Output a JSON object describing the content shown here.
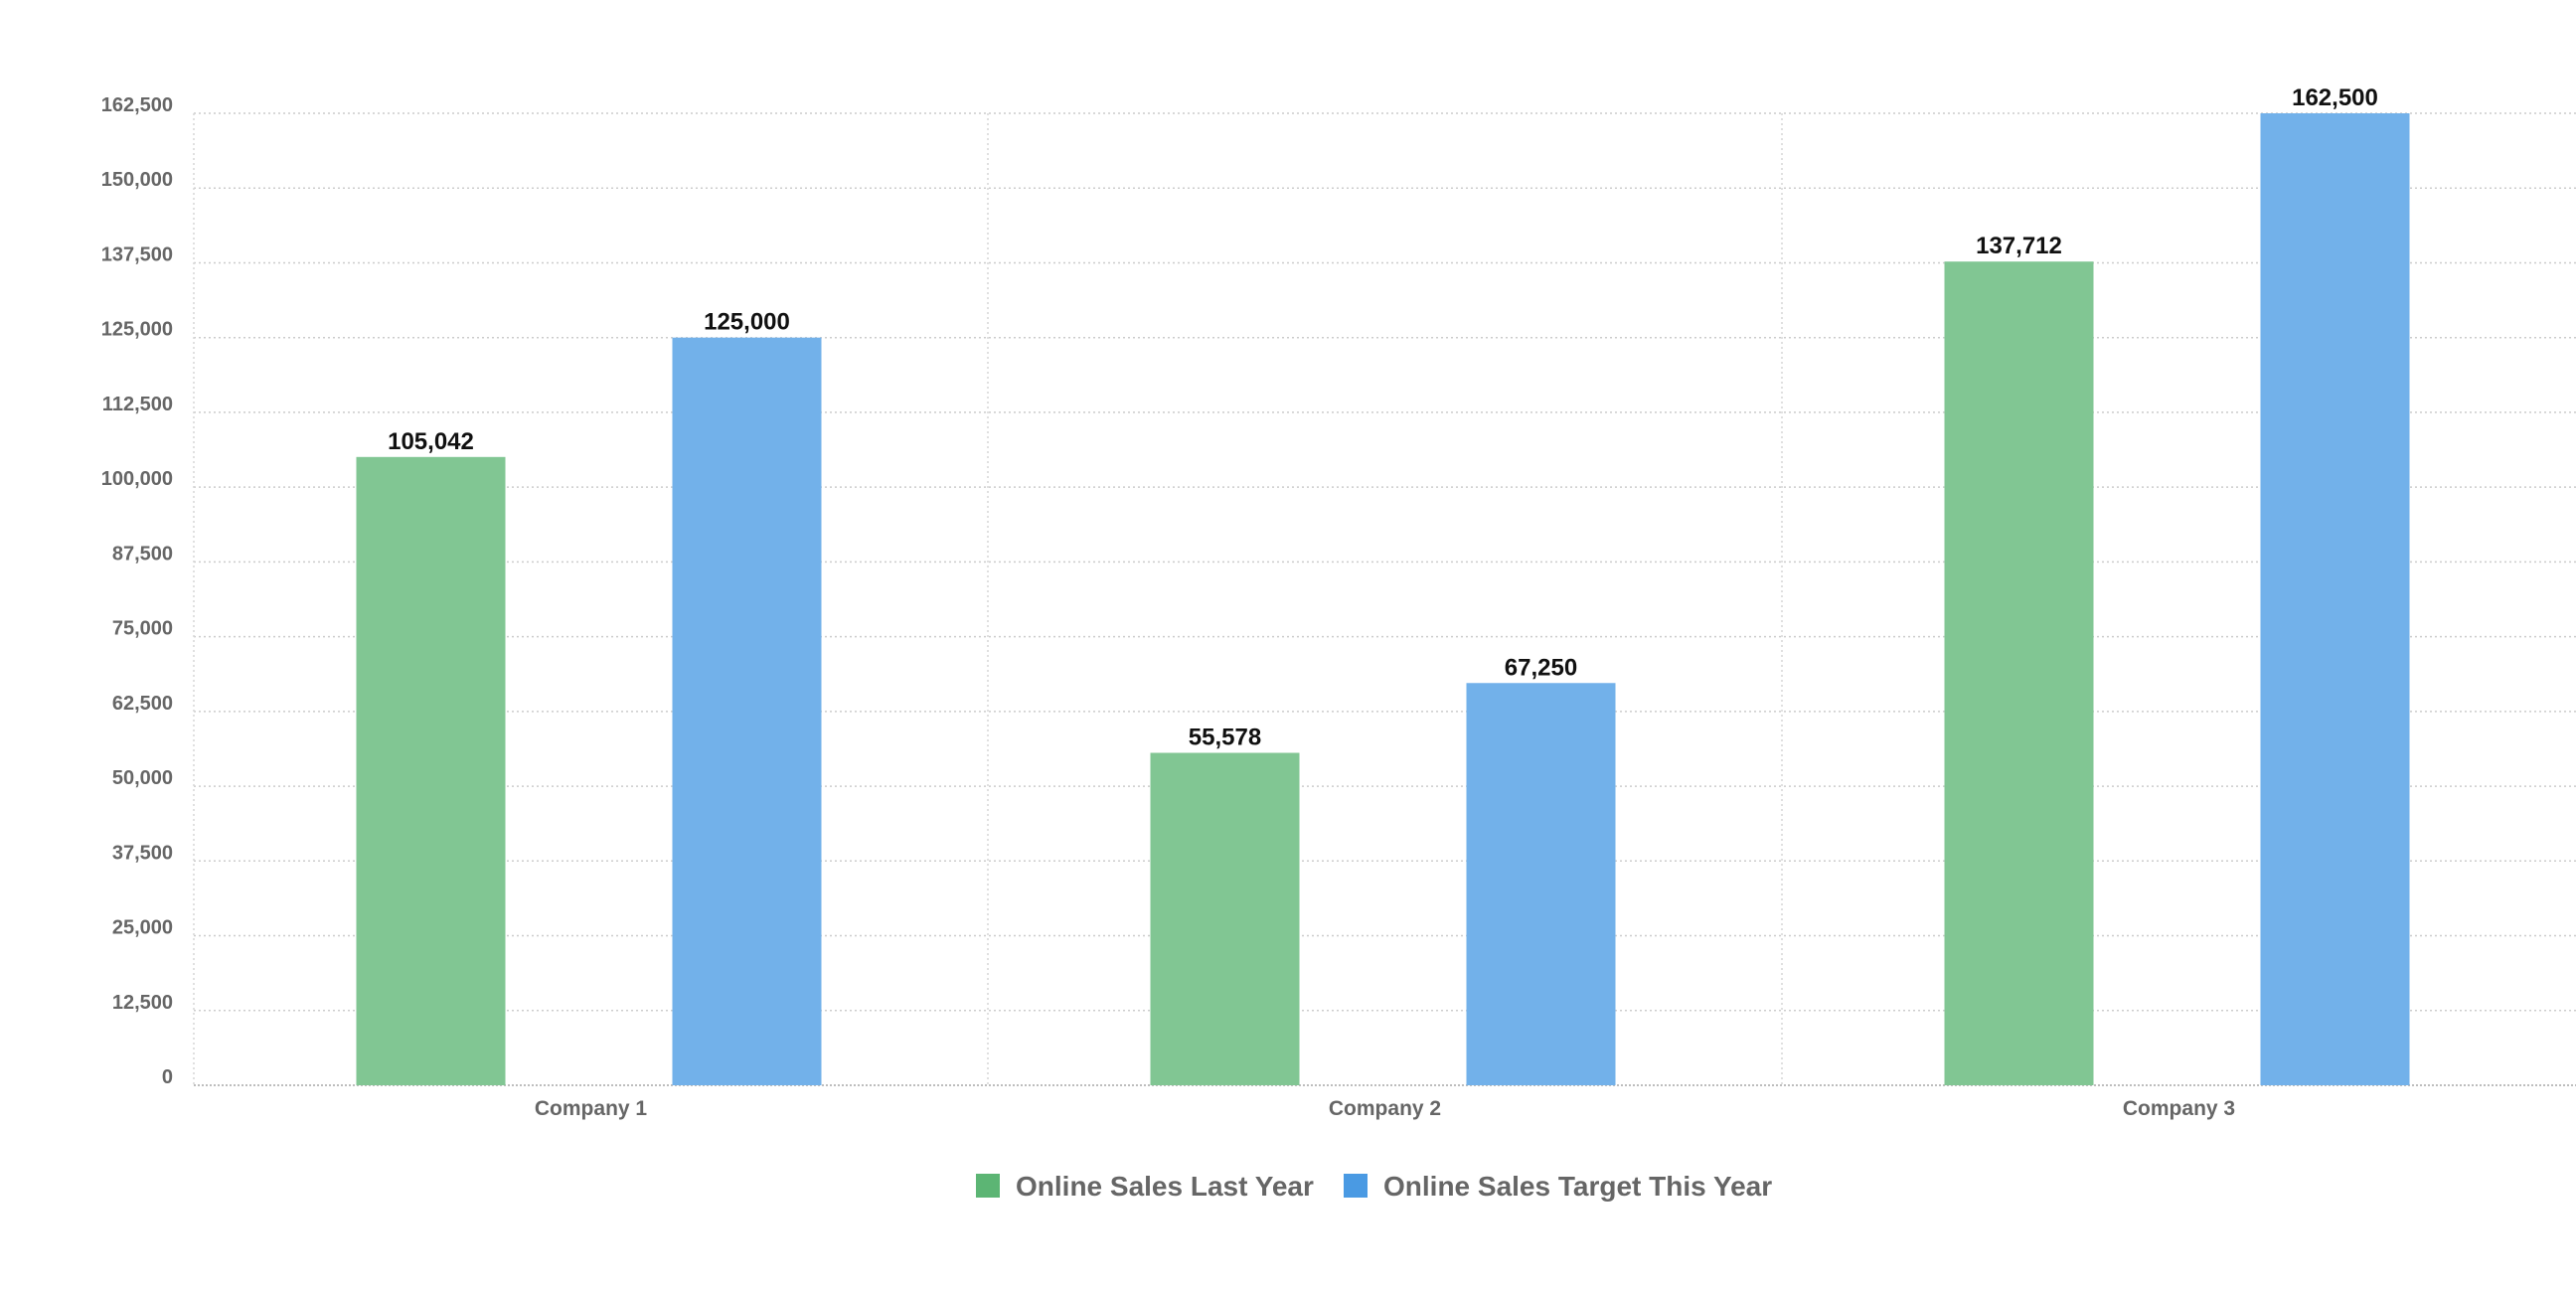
{
  "chart_data": {
    "type": "bar",
    "title": "",
    "xlabel": "",
    "ylabel": "",
    "categories": [
      "Company 1",
      "Company 2",
      "Company 3"
    ],
    "series": [
      {
        "name": "Online Sales Last Year",
        "values": [
          105042,
          55578,
          137712
        ],
        "labels": [
          "105,042",
          "55,578",
          "137,712"
        ],
        "color": "#81c693"
      },
      {
        "name": "Online Sales Target This Year",
        "values": [
          125000,
          67250,
          162500
        ],
        "labels": [
          "125,000",
          "67,250",
          "162,500"
        ],
        "color": "#72b1ea"
      }
    ],
    "legend_colors": [
      "#5cb574",
      "#4a9ae3"
    ],
    "ylim": [
      0,
      162500
    ],
    "yticks": [
      0,
      12500,
      25000,
      37500,
      50000,
      62500,
      75000,
      87500,
      100000,
      112500,
      125000,
      137500,
      150000,
      162500
    ],
    "ytick_labels": [
      "0",
      "12,500",
      "25,000",
      "37,500",
      "50,000",
      "62,500",
      "75,000",
      "87,500",
      "100,000",
      "112,500",
      "125,000",
      "137,500",
      "150,000",
      "162,500"
    ],
    "grid": true,
    "legend_position": "bottom-center"
  }
}
